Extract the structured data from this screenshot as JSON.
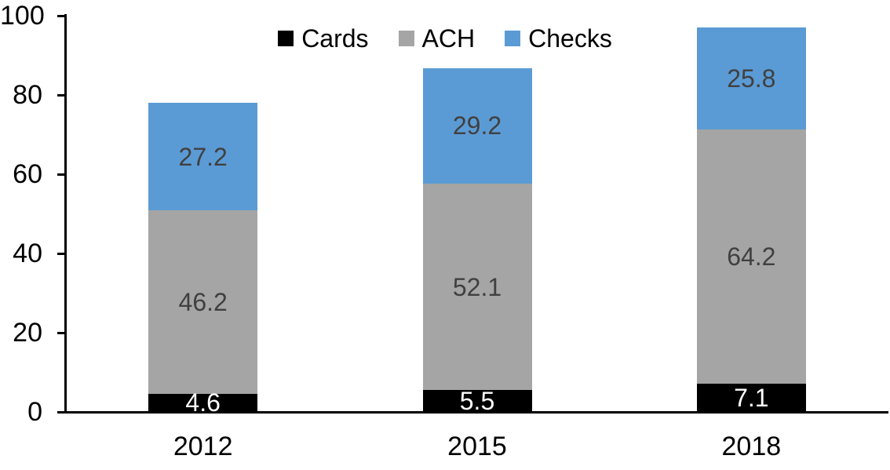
{
  "chart_data": {
    "type": "bar",
    "stacked": true,
    "title": "",
    "xlabel": "",
    "ylabel": "",
    "categories": [
      "2012",
      "2015",
      "2018"
    ],
    "series": [
      {
        "name": "Cards",
        "color": "#000000",
        "label_color": "#ffffff",
        "values": [
          4.6,
          5.5,
          7.1
        ]
      },
      {
        "name": "ACH",
        "color": "#a5a5a5",
        "label_color": "#404040",
        "values": [
          46.2,
          52.1,
          64.2
        ]
      },
      {
        "name": "Checks",
        "color": "#5b9bd5",
        "label_color": "#404040",
        "values": [
          27.2,
          29.2,
          25.8
        ]
      }
    ],
    "stack_totals": [
      78.0,
      86.8,
      97.1
    ],
    "ylim": [
      0,
      100
    ],
    "yticks": [
      0,
      20,
      40,
      60,
      80,
      100
    ],
    "grid": false,
    "legend_position": "top",
    "axis_color": "#000000",
    "background_color": "#ffffff"
  }
}
